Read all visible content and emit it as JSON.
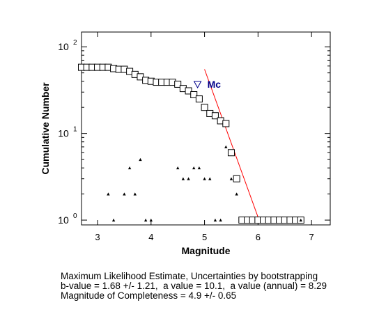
{
  "chart_data": {
    "type": "scatter",
    "title": "",
    "xlabel": "Magnitude",
    "ylabel": "Cumulative Number",
    "xlim": [
      2.7,
      7.35
    ],
    "ylim": [
      0.88,
      148
    ],
    "yscale": "log",
    "x_ticks": [
      3,
      4,
      5,
      6,
      7
    ],
    "y_ticks": [
      {
        "value": 1,
        "base": "10",
        "exp": "0"
      },
      {
        "value": 10,
        "base": "10",
        "exp": "1"
      },
      {
        "value": 100,
        "base": "10",
        "exp": "2"
      }
    ],
    "grid": false,
    "legend": "none",
    "series": [
      {
        "marker": "open-square",
        "color": "#000000",
        "points": [
          [
            2.7,
            58
          ],
          [
            2.8,
            58
          ],
          [
            2.9,
            58
          ],
          [
            3.0,
            58
          ],
          [
            3.1,
            58
          ],
          [
            3.2,
            58
          ],
          [
            3.3,
            56
          ],
          [
            3.4,
            55
          ],
          [
            3.5,
            55
          ],
          [
            3.6,
            52
          ],
          [
            3.7,
            48
          ],
          [
            3.8,
            45
          ],
          [
            3.9,
            41
          ],
          [
            4.0,
            40
          ],
          [
            4.1,
            39
          ],
          [
            4.2,
            39
          ],
          [
            4.3,
            39
          ],
          [
            4.4,
            39
          ],
          [
            4.5,
            37
          ],
          [
            4.6,
            33
          ],
          [
            4.7,
            31
          ],
          [
            4.8,
            28
          ],
          [
            4.9,
            25
          ],
          [
            5.0,
            20
          ],
          [
            5.1,
            17
          ],
          [
            5.2,
            16
          ],
          [
            5.3,
            14
          ],
          [
            5.4,
            13
          ],
          [
            5.5,
            6
          ],
          [
            5.6,
            3
          ],
          [
            5.7,
            1
          ],
          [
            5.8,
            1
          ],
          [
            5.9,
            1
          ],
          [
            6.0,
            1
          ],
          [
            6.1,
            1
          ],
          [
            6.2,
            1
          ],
          [
            6.3,
            1
          ],
          [
            6.4,
            1
          ],
          [
            6.5,
            1
          ],
          [
            6.6,
            1
          ],
          [
            6.7,
            1
          ],
          [
            6.8,
            1
          ]
        ]
      },
      {
        "marker": "filled-triangle",
        "color": "#000000",
        "points": [
          [
            3.2,
            2
          ],
          [
            3.3,
            1
          ],
          [
            3.5,
            2
          ],
          [
            3.6,
            4
          ],
          [
            3.7,
            2
          ],
          [
            3.8,
            5
          ],
          [
            3.9,
            1
          ],
          [
            4.0,
            1
          ],
          [
            4.5,
            4
          ],
          [
            4.6,
            3
          ],
          [
            4.7,
            3
          ],
          [
            4.8,
            4
          ],
          [
            4.9,
            4
          ],
          [
            5.0,
            3
          ],
          [
            5.1,
            3
          ],
          [
            5.2,
            1
          ],
          [
            5.3,
            1
          ],
          [
            5.4,
            7
          ],
          [
            5.5,
            3
          ],
          [
            5.6,
            2
          ],
          [
            6.8,
            1
          ]
        ]
      }
    ],
    "fit_line": {
      "color": "#ff0000",
      "from": [
        5.0,
        55
      ],
      "to": [
        6.02,
        1
      ]
    },
    "mc_marker": {
      "x": 4.87,
      "y": 37,
      "label": "Mc",
      "color": "#00008b"
    }
  },
  "caption": {
    "line1": "Maximum Likelihood Estimate, Uncertainties by bootstrapping",
    "line2": "b-value = 1.68 +/- 1.21,  a value = 10.1,  a value (annual) = 8.29",
    "line3": "Magnitude of Completeness = 4.9 +/- 0.65"
  }
}
